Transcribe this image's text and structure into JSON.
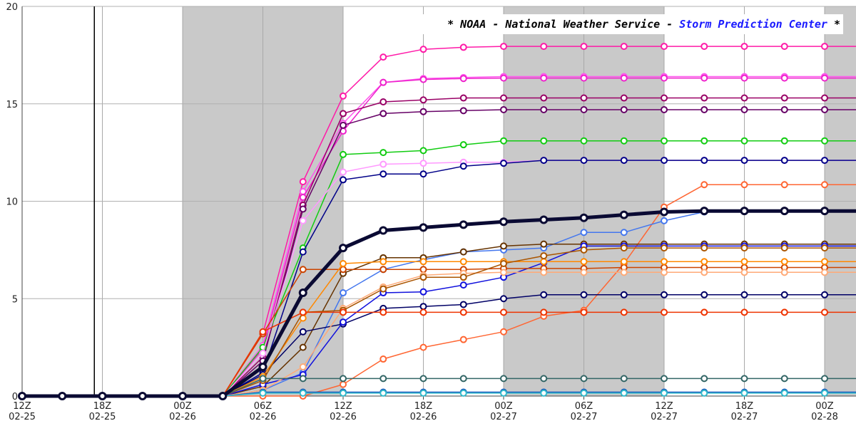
{
  "banner": {
    "prefix": "* NOAA - National Weather Service - ",
    "link": "Storm Prediction Center",
    "suffix": " *",
    "prefix_color": "#000000",
    "link_color": "#1a1aff"
  },
  "chart_data": {
    "type": "line",
    "title": "",
    "xlabel": "",
    "ylabel": "",
    "ylim": [
      0,
      20
    ],
    "y_ticks": [
      0,
      5,
      10,
      15,
      20
    ],
    "x_unit": "hours from 12Z 02-25",
    "x_ticks": [
      {
        "h": 0,
        "label1": "12Z",
        "label2": "02-25"
      },
      {
        "h": 6,
        "label1": "18Z",
        "label2": "02-25"
      },
      {
        "h": 12,
        "label1": "00Z",
        "label2": "02-26"
      },
      {
        "h": 18,
        "label1": "06Z",
        "label2": "02-26"
      },
      {
        "h": 24,
        "label1": "12Z",
        "label2": "02-26"
      },
      {
        "h": 30,
        "label1": "18Z",
        "label2": "02-26"
      },
      {
        "h": 36,
        "label1": "00Z",
        "label2": "02-27"
      },
      {
        "h": 42,
        "label1": "06Z",
        "label2": "02-27"
      },
      {
        "h": 48,
        "label1": "12Z",
        "label2": "02-27"
      },
      {
        "h": 54,
        "label1": "18Z",
        "label2": "02-27"
      },
      {
        "h": 60,
        "label1": "00Z",
        "label2": "02-28"
      }
    ],
    "night_shading": [
      [
        12,
        24
      ],
      [
        36,
        48
      ],
      [
        60,
        64
      ]
    ],
    "current_time_h": 5.4,
    "grid": true,
    "x": [
      0,
      3,
      6,
      9,
      12,
      15,
      18,
      21,
      24,
      27,
      30,
      33,
      36,
      39,
      42,
      45,
      48,
      51,
      54,
      57,
      60,
      63
    ],
    "series": [
      {
        "color": "#ff1aa8",
        "width": 1.5,
        "values": [
          0,
          0,
          0,
          0,
          0,
          0,
          3.2,
          11.0,
          15.4,
          17.4,
          17.8,
          17.9,
          17.95,
          17.95,
          17.95,
          17.95,
          17.95,
          17.95,
          17.95,
          17.95,
          17.95,
          17.95
        ]
      },
      {
        "color": "#ff55ee",
        "width": 1.5,
        "values": [
          0,
          0,
          0,
          0,
          0,
          0,
          2.6,
          10.5,
          14.0,
          16.1,
          16.3,
          16.35,
          16.4,
          16.4,
          16.4,
          16.4,
          16.4,
          16.4,
          16.4,
          16.4,
          16.4,
          16.4
        ]
      },
      {
        "color": "#ee22cc",
        "width": 1.5,
        "values": [
          0,
          0,
          0,
          0,
          0,
          0,
          2.4,
          10.2,
          13.6,
          16.1,
          16.25,
          16.3,
          16.32,
          16.32,
          16.32,
          16.32,
          16.32,
          16.32,
          16.32,
          16.32,
          16.32,
          16.32
        ]
      },
      {
        "color": "#990066",
        "width": 1.5,
        "values": [
          0,
          0,
          0,
          0,
          0,
          0,
          2.0,
          9.8,
          14.5,
          15.1,
          15.2,
          15.3,
          15.3,
          15.3,
          15.3,
          15.3,
          15.3,
          15.3,
          15.3,
          15.3,
          15.3,
          15.3
        ]
      },
      {
        "color": "#660066",
        "width": 1.5,
        "values": [
          0,
          0,
          0,
          0,
          0,
          0,
          1.8,
          9.6,
          13.9,
          14.5,
          14.6,
          14.65,
          14.7,
          14.7,
          14.7,
          14.7,
          14.7,
          14.7,
          14.7,
          14.7,
          14.7,
          14.7
        ]
      },
      {
        "color": "#11cc11",
        "width": 1.5,
        "values": [
          0,
          0,
          0,
          0,
          0,
          0,
          2.5,
          7.6,
          12.4,
          12.5,
          12.6,
          12.9,
          13.1,
          13.1,
          13.1,
          13.1,
          13.1,
          13.1,
          13.1,
          13.1,
          13.1,
          13.1
        ]
      },
      {
        "color": "#ff99ff",
        "width": 1.5,
        "values": [
          0,
          0,
          0,
          0,
          0,
          0,
          2.2,
          9.0,
          11.5,
          11.9,
          11.95,
          12.0,
          12.0,
          12.1,
          12.1,
          12.1,
          12.1,
          12.1,
          12.1,
          12.1,
          12.1,
          12.1
        ]
      },
      {
        "color": "#000088",
        "width": 1.5,
        "values": [
          0,
          0,
          0,
          0,
          0,
          0,
          1.2,
          7.4,
          11.1,
          11.4,
          11.4,
          11.8,
          11.95,
          12.1,
          12.1,
          12.1,
          12.1,
          12.1,
          12.1,
          12.1,
          12.1,
          12.1
        ]
      },
      {
        "color": "#ff6633",
        "width": 1.5,
        "values": [
          0,
          0,
          0,
          0,
          0,
          0,
          0,
          0.0,
          0.6,
          1.9,
          2.5,
          2.9,
          3.3,
          4.1,
          4.4,
          6.8,
          9.7,
          10.85,
          10.85,
          10.85,
          10.85,
          10.85
        ]
      },
      {
        "color": "#0a0a33",
        "width": 5,
        "values": [
          0,
          0,
          0,
          0,
          0,
          0,
          1.5,
          5.3,
          7.6,
          8.5,
          8.65,
          8.8,
          8.95,
          9.05,
          9.15,
          9.3,
          9.45,
          9.5,
          9.5,
          9.5,
          9.5,
          9.5
        ]
      },
      {
        "color": "#4477ee",
        "width": 1.5,
        "values": [
          0,
          0,
          0,
          0,
          0,
          0,
          0.3,
          1.2,
          5.3,
          6.5,
          7.0,
          7.4,
          7.5,
          7.6,
          8.4,
          8.4,
          9.0,
          9.45,
          9.5,
          9.5,
          9.5,
          9.5
        ]
      },
      {
        "color": "#663300",
        "width": 1.5,
        "values": [
          0,
          0,
          0,
          0,
          0,
          0,
          0.5,
          2.5,
          6.3,
          7.1,
          7.1,
          7.4,
          7.7,
          7.8,
          7.8,
          7.8,
          7.8,
          7.8,
          7.8,
          7.8,
          7.8,
          7.8
        ]
      },
      {
        "color": "#000066",
        "width": 1.5,
        "values": [
          0,
          0,
          0,
          0,
          0,
          0,
          1.1,
          3.3,
          3.7,
          4.5,
          4.6,
          4.7,
          5.0,
          5.2,
          5.2,
          5.2,
          5.2,
          5.2,
          5.2,
          5.2,
          5.2,
          5.2
        ]
      },
      {
        "color": "#1111dd",
        "width": 1.5,
        "values": [
          0,
          0,
          0,
          0,
          0,
          0,
          0.6,
          1.1,
          3.8,
          5.3,
          5.35,
          5.7,
          6.1,
          6.85,
          7.7,
          7.7,
          7.7,
          7.7,
          7.7,
          7.7,
          7.7,
          7.7
        ]
      },
      {
        "color": "#cc4400",
        "width": 1.5,
        "values": [
          0,
          0,
          0,
          0,
          0,
          0,
          3.2,
          6.5,
          6.5,
          6.5,
          6.5,
          6.5,
          6.55,
          6.55,
          6.55,
          6.6,
          6.6,
          6.6,
          6.6,
          6.6,
          6.6,
          6.6
        ]
      },
      {
        "color": "#ff8800",
        "width": 1.5,
        "values": [
          0,
          0,
          0,
          0,
          0,
          0,
          1.0,
          4.0,
          6.8,
          6.9,
          6.9,
          6.9,
          6.9,
          6.9,
          6.9,
          6.9,
          6.9,
          6.9,
          6.9,
          6.9,
          6.9,
          6.9
        ]
      },
      {
        "color": "#ffaa77",
        "width": 1.5,
        "values": [
          0,
          0,
          0,
          0,
          0,
          0,
          0.3,
          1.5,
          4.5,
          5.6,
          6.2,
          6.3,
          6.35,
          6.35,
          6.35,
          6.35,
          6.35,
          6.35,
          6.35,
          6.35,
          6.35,
          6.35
        ]
      },
      {
        "color": "#aa5500",
        "width": 1.5,
        "values": [
          0,
          0,
          0,
          0,
          0,
          0,
          0.8,
          4.3,
          4.4,
          5.5,
          6.1,
          6.1,
          6.8,
          7.2,
          7.5,
          7.6,
          7.6,
          7.6,
          7.6,
          7.6,
          7.6,
          7.6
        ]
      },
      {
        "color": "#ee3300",
        "width": 1.5,
        "values": [
          0,
          0,
          0,
          0,
          0,
          0,
          3.3,
          4.3,
          4.3,
          4.3,
          4.3,
          4.3,
          4.3,
          4.3,
          4.3,
          4.3,
          4.3,
          4.3,
          4.3,
          4.3,
          4.3,
          4.3
        ]
      },
      {
        "color": "#336666",
        "width": 1.5,
        "values": [
          0,
          0,
          0,
          0,
          0,
          0,
          0.9,
          0.9,
          0.9,
          0.9,
          0.9,
          0.9,
          0.9,
          0.9,
          0.9,
          0.9,
          0.9,
          0.9,
          0.9,
          0.9,
          0.9,
          0.9
        ]
      },
      {
        "color": "#1155bb",
        "width": 1.5,
        "values": [
          0,
          0,
          0,
          0,
          0,
          0,
          0.2,
          0.2,
          0.2,
          0.2,
          0.2,
          0.2,
          0.2,
          0.2,
          0.2,
          0.2,
          0.2,
          0.2,
          0.2,
          0.2,
          0.2,
          0.2
        ]
      },
      {
        "color": "#33bbcc",
        "width": 1.5,
        "values": [
          0,
          0,
          0,
          0,
          0,
          0,
          0.15,
          0.15,
          0.15,
          0.15,
          0.15,
          0.15,
          0.15,
          0.15,
          0.15,
          0.15,
          0.15,
          0.15,
          0.15,
          0.15,
          0.15,
          0.15
        ]
      }
    ]
  }
}
